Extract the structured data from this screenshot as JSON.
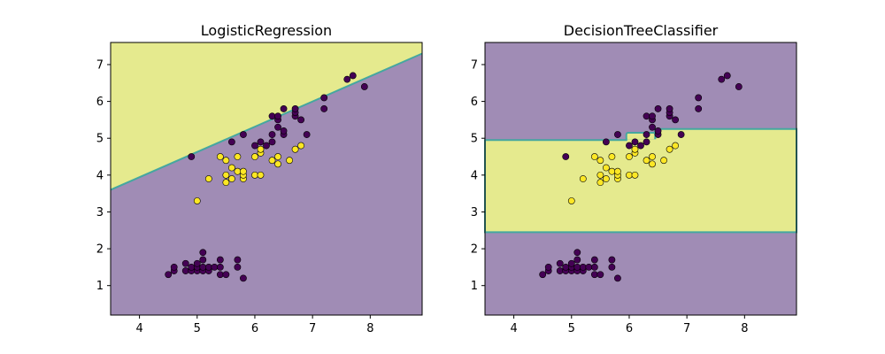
{
  "chart_data": [
    {
      "type": "scatter",
      "title": "LogisticRegression",
      "xlabel": "",
      "ylabel": "",
      "xlim": [
        3.5,
        8.9
      ],
      "ylim": [
        0.2,
        7.6
      ],
      "xticks": [
        4,
        5,
        6,
        7,
        8
      ],
      "yticks": [
        1,
        2,
        3,
        4,
        5,
        6,
        7
      ],
      "grid": false,
      "legend": "none",
      "decision_regions": {
        "class_above_boundary": 1,
        "class_below_boundary": 0,
        "boundary_line": [
          [
            3.5,
            3.6
          ],
          [
            8.9,
            7.3
          ]
        ]
      },
      "colors": {
        "class_0_region": "#a08cb5",
        "class_1_region": "#e5ea8e",
        "class_0_point": "#440154",
        "class_1_point": "#fde725",
        "boundary": "#45a7a0"
      },
      "points": "iris_points"
    },
    {
      "type": "scatter",
      "title": "DecisionTreeClassifier",
      "xlabel": "",
      "ylabel": "",
      "xlim": [
        3.5,
        8.9
      ],
      "ylim": [
        0.2,
        7.6
      ],
      "xticks": [
        4,
        5,
        6,
        7,
        8
      ],
      "yticks": [
        1,
        2,
        3,
        4,
        5,
        6,
        7
      ],
      "grid": false,
      "legend": "none",
      "decision_regions": {
        "class_1_band": {
          "y_min": 2.45,
          "y_max": 4.95,
          "x_min": 3.5,
          "x_max": 8.9
        },
        "class_1_band_right_upper": {
          "x_min": 6.45,
          "y_max": 5.25
        },
        "class_1_notch": {
          "x_min": 5.95,
          "x_max": 6.45,
          "y_max": 5.15
        }
      },
      "colors": {
        "class_0_region": "#a08cb5",
        "class_1_region": "#e5ea8e",
        "class_0_point": "#440154",
        "class_1_point": "#fde725",
        "boundary": "#45a7a0"
      },
      "points": "iris_points"
    }
  ],
  "iris_points": [
    {
      "x": 4.5,
      "y": 1.3,
      "c": 0
    },
    {
      "x": 4.6,
      "y": 1.4,
      "c": 0
    },
    {
      "x": 4.6,
      "y": 1.5,
      "c": 0
    },
    {
      "x": 4.8,
      "y": 1.4,
      "c": 0
    },
    {
      "x": 4.8,
      "y": 1.6,
      "c": 0
    },
    {
      "x": 4.9,
      "y": 1.4,
      "c": 0
    },
    {
      "x": 4.9,
      "y": 1.5,
      "c": 0
    },
    {
      "x": 5.0,
      "y": 1.4,
      "c": 0
    },
    {
      "x": 5.0,
      "y": 1.5,
      "c": 0
    },
    {
      "x": 5.0,
      "y": 1.6,
      "c": 0
    },
    {
      "x": 5.1,
      "y": 1.4,
      "c": 0
    },
    {
      "x": 5.1,
      "y": 1.5,
      "c": 0
    },
    {
      "x": 5.1,
      "y": 1.7,
      "c": 0
    },
    {
      "x": 5.1,
      "y": 1.9,
      "c": 0
    },
    {
      "x": 5.2,
      "y": 1.4,
      "c": 0
    },
    {
      "x": 5.2,
      "y": 1.5,
      "c": 0
    },
    {
      "x": 5.3,
      "y": 1.5,
      "c": 0
    },
    {
      "x": 5.4,
      "y": 1.3,
      "c": 0
    },
    {
      "x": 5.4,
      "y": 1.5,
      "c": 0
    },
    {
      "x": 5.4,
      "y": 1.7,
      "c": 0
    },
    {
      "x": 5.5,
      "y": 1.3,
      "c": 0
    },
    {
      "x": 5.7,
      "y": 1.5,
      "c": 0
    },
    {
      "x": 5.7,
      "y": 1.7,
      "c": 0
    },
    {
      "x": 5.8,
      "y": 1.2,
      "c": 0
    },
    {
      "x": 5.0,
      "y": 3.3,
      "c": 1
    },
    {
      "x": 5.2,
      "y": 3.9,
      "c": 1
    },
    {
      "x": 5.4,
      "y": 4.5,
      "c": 1
    },
    {
      "x": 5.5,
      "y": 4.0,
      "c": 1
    },
    {
      "x": 5.5,
      "y": 3.8,
      "c": 1
    },
    {
      "x": 5.5,
      "y": 4.4,
      "c": 1
    },
    {
      "x": 5.6,
      "y": 4.2,
      "c": 1
    },
    {
      "x": 5.6,
      "y": 3.9,
      "c": 1
    },
    {
      "x": 5.7,
      "y": 4.1,
      "c": 1
    },
    {
      "x": 5.7,
      "y": 4.5,
      "c": 1
    },
    {
      "x": 5.8,
      "y": 3.9,
      "c": 1
    },
    {
      "x": 5.8,
      "y": 4.0,
      "c": 1
    },
    {
      "x": 5.8,
      "y": 4.1,
      "c": 1
    },
    {
      "x": 6.0,
      "y": 4.0,
      "c": 1
    },
    {
      "x": 6.0,
      "y": 4.5,
      "c": 1
    },
    {
      "x": 6.1,
      "y": 4.0,
      "c": 1
    },
    {
      "x": 6.1,
      "y": 4.6,
      "c": 1
    },
    {
      "x": 6.1,
      "y": 4.7,
      "c": 1
    },
    {
      "x": 6.3,
      "y": 4.4,
      "c": 1
    },
    {
      "x": 6.4,
      "y": 4.3,
      "c": 1
    },
    {
      "x": 6.4,
      "y": 4.5,
      "c": 1
    },
    {
      "x": 6.6,
      "y": 4.4,
      "c": 1
    },
    {
      "x": 6.7,
      "y": 4.7,
      "c": 1
    },
    {
      "x": 6.8,
      "y": 4.8,
      "c": 1
    },
    {
      "x": 4.9,
      "y": 4.5,
      "c": 0
    },
    {
      "x": 5.6,
      "y": 4.9,
      "c": 0
    },
    {
      "x": 5.8,
      "y": 5.1,
      "c": 0
    },
    {
      "x": 6.0,
      "y": 4.8,
      "c": 0
    },
    {
      "x": 6.1,
      "y": 4.9,
      "c": 0
    },
    {
      "x": 6.2,
      "y": 4.8,
      "c": 0
    },
    {
      "x": 6.3,
      "y": 4.9,
      "c": 0
    },
    {
      "x": 6.3,
      "y": 5.1,
      "c": 0
    },
    {
      "x": 6.3,
      "y": 5.6,
      "c": 0
    },
    {
      "x": 6.4,
      "y": 5.3,
      "c": 0
    },
    {
      "x": 6.4,
      "y": 5.5,
      "c": 0
    },
    {
      "x": 6.4,
      "y": 5.6,
      "c": 0
    },
    {
      "x": 6.5,
      "y": 5.1,
      "c": 0
    },
    {
      "x": 6.5,
      "y": 5.2,
      "c": 0
    },
    {
      "x": 6.5,
      "y": 5.8,
      "c": 0
    },
    {
      "x": 6.7,
      "y": 5.6,
      "c": 0
    },
    {
      "x": 6.7,
      "y": 5.7,
      "c": 0
    },
    {
      "x": 6.7,
      "y": 5.8,
      "c": 0
    },
    {
      "x": 6.8,
      "y": 5.5,
      "c": 0
    },
    {
      "x": 6.9,
      "y": 5.1,
      "c": 0
    },
    {
      "x": 7.2,
      "y": 5.8,
      "c": 0
    },
    {
      "x": 7.2,
      "y": 6.1,
      "c": 0
    },
    {
      "x": 7.6,
      "y": 6.6,
      "c": 0
    },
    {
      "x": 7.7,
      "y": 6.7,
      "c": 0
    },
    {
      "x": 7.9,
      "y": 6.4,
      "c": 0
    }
  ]
}
